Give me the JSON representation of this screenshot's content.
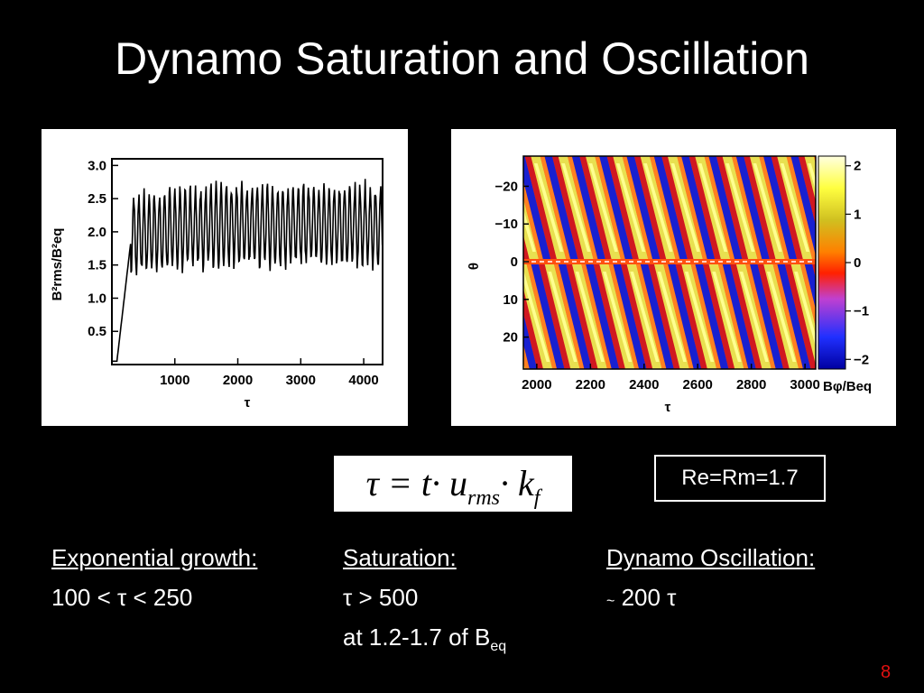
{
  "title": "Dynamo Saturation and Oscillation",
  "left_plot": {
    "xlabel": "τ",
    "ylabel": "B²rms/B²eq",
    "xticks": [
      "1000",
      "2000",
      "3000",
      "4000"
    ],
    "yticks": [
      "3.0",
      "2.5",
      "2.0",
      "1.5",
      "1.0",
      "0.5"
    ]
  },
  "right_plot": {
    "xlabel": "τ",
    "ylabel": "θ",
    "xticks": [
      "2000",
      "2200",
      "2400",
      "2600",
      "2800",
      "3000"
    ],
    "yticks": [
      "−20",
      "−10",
      "0",
      "10",
      "20"
    ],
    "colorbar_ticks": [
      "2",
      "1",
      "0",
      "−1",
      "−2"
    ],
    "colorbar_label": "Bφ/Beq"
  },
  "formula": {
    "lhs": "τ = t·",
    "u": "u",
    "u_sub": "rms",
    "k": "· k",
    "k_sub": "f"
  },
  "params": "Re=Rm=1.7",
  "columns": {
    "growth": {
      "head": "Exponential growth:",
      "line1": "100 < τ < 250"
    },
    "saturation": {
      "head": "Saturation:",
      "line1": "τ > 500",
      "line2_main": "at 1.2-1.7 of B",
      "line2_sub": "eq"
    },
    "oscillation": {
      "head": "Dynamo Oscillation:",
      "tilde": "~",
      "line1": " 200 τ"
    }
  },
  "page_number": "8"
}
